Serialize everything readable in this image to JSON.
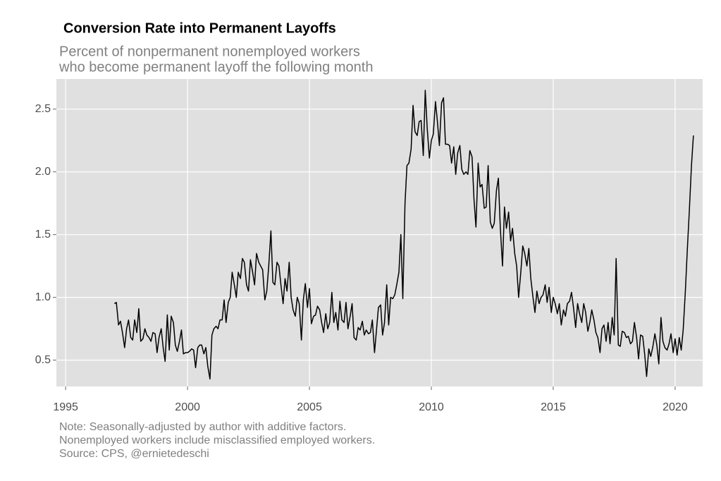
{
  "chart_data": {
    "type": "line",
    "title": "Conversion Rate into Permanent Layoffs",
    "subtitle": [
      "Percent of nonpermanent nonemployed workers",
      "who become permanent layoff the following month"
    ],
    "notes": [
      "Note: Seasonally-adjusted by author with additive factors.",
      "Nonemployed workers include misclassified employed workers.",
      "Source: CPS, @ernietedeschi"
    ],
    "xlim": [
      1994.62,
      2021.13
    ],
    "ylim": [
      0.29,
      2.74
    ],
    "xticks": [
      1995,
      2000,
      2005,
      2010,
      2015,
      2020
    ],
    "yticks": [
      0.5,
      {
        "value": 1,
        "label": "1.0"
      },
      1.5,
      {
        "value": 2,
        "label": "2.0"
      },
      2.5
    ],
    "grid": true,
    "x": [
      1997,
      1997.08,
      1997.17,
      1997.25,
      1997.33,
      1997.42,
      1997.5,
      1997.58,
      1997.67,
      1997.75,
      1997.83,
      1997.92,
      1998,
      1998.08,
      1998.17,
      1998.25,
      1998.33,
      1998.42,
      1998.5,
      1998.58,
      1998.67,
      1998.75,
      1998.83,
      1998.92,
      1999,
      1999.08,
      1999.17,
      1999.25,
      1999.33,
      1999.42,
      1999.5,
      1999.58,
      1999.67,
      1999.75,
      1999.83,
      1999.92,
      2000,
      2000.08,
      2000.17,
      2000.25,
      2000.33,
      2000.42,
      2000.5,
      2000.58,
      2000.67,
      2000.75,
      2000.83,
      2000.92,
      2001,
      2001.08,
      2001.17,
      2001.25,
      2001.33,
      2001.42,
      2001.5,
      2001.58,
      2001.67,
      2001.75,
      2001.83,
      2001.92,
      2002,
      2002.08,
      2002.17,
      2002.25,
      2002.33,
      2002.42,
      2002.5,
      2002.58,
      2002.67,
      2002.75,
      2002.83,
      2002.92,
      2003,
      2003.08,
      2003.17,
      2003.25,
      2003.33,
      2003.42,
      2003.5,
      2003.58,
      2003.67,
      2003.75,
      2003.83,
      2003.92,
      2004,
      2004.08,
      2004.17,
      2004.25,
      2004.33,
      2004.42,
      2004.5,
      2004.58,
      2004.67,
      2004.75,
      2004.83,
      2004.92,
      2005,
      2005.08,
      2005.17,
      2005.25,
      2005.33,
      2005.42,
      2005.5,
      2005.58,
      2005.67,
      2005.75,
      2005.83,
      2005.92,
      2006,
      2006.08,
      2006.17,
      2006.25,
      2006.33,
      2006.42,
      2006.5,
      2006.58,
      2006.67,
      2006.75,
      2006.83,
      2006.92,
      2007,
      2007.08,
      2007.17,
      2007.25,
      2007.33,
      2007.42,
      2007.5,
      2007.58,
      2007.67,
      2007.75,
      2007.83,
      2007.92,
      2008,
      2008.08,
      2008.17,
      2008.25,
      2008.33,
      2008.42,
      2008.5,
      2008.58,
      2008.67,
      2008.75,
      2008.83,
      2008.92,
      2009,
      2009.08,
      2009.17,
      2009.25,
      2009.33,
      2009.42,
      2009.5,
      2009.58,
      2009.67,
      2009.75,
      2009.83,
      2009.92,
      2010,
      2010.08,
      2010.17,
      2010.25,
      2010.33,
      2010.42,
      2010.5,
      2010.58,
      2010.67,
      2010.75,
      2010.83,
      2010.92,
      2011,
      2011.08,
      2011.17,
      2011.25,
      2011.33,
      2011.42,
      2011.5,
      2011.58,
      2011.67,
      2011.75,
      2011.83,
      2011.92,
      2012,
      2012.08,
      2012.17,
      2012.25,
      2012.33,
      2012.42,
      2012.5,
      2012.58,
      2012.67,
      2012.75,
      2012.83,
      2012.92,
      2013,
      2013.08,
      2013.17,
      2013.25,
      2013.33,
      2013.42,
      2013.5,
      2013.58,
      2013.67,
      2013.75,
      2013.83,
      2013.92,
      2014,
      2014.08,
      2014.17,
      2014.25,
      2014.33,
      2014.42,
      2014.5,
      2014.58,
      2014.67,
      2014.75,
      2014.83,
      2014.92,
      2015,
      2015.08,
      2015.17,
      2015.25,
      2015.33,
      2015.42,
      2015.5,
      2015.58,
      2015.67,
      2015.75,
      2015.83,
      2015.92,
      2016,
      2016.08,
      2016.17,
      2016.25,
      2016.33,
      2016.42,
      2016.5,
      2016.58,
      2016.67,
      2016.75,
      2016.83,
      2016.92,
      2017,
      2017.08,
      2017.17,
      2017.25,
      2017.33,
      2017.42,
      2017.5,
      2017.58,
      2017.67,
      2017.75,
      2017.83,
      2017.92,
      2018,
      2018.08,
      2018.17,
      2018.25,
      2018.33,
      2018.42,
      2018.5,
      2018.58,
      2018.67,
      2018.75,
      2018.83,
      2018.92,
      2019,
      2019.08,
      2019.17,
      2019.25,
      2019.33,
      2019.42,
      2019.5,
      2019.58,
      2019.67,
      2019.75,
      2019.83,
      2019.92,
      2020,
      2020.08,
      2020.17,
      2020.25,
      2020.33,
      2020.42,
      2020.5,
      2020.58,
      2020.67,
      2020.75
    ],
    "series": [
      {
        "color": "#000000",
        "values": [
          0.95,
          0.96,
          0.78,
          0.81,
          0.72,
          0.6,
          0.75,
          0.82,
          0.68,
          0.66,
          0.82,
          0.72,
          0.91,
          0.65,
          0.67,
          0.75,
          0.7,
          0.68,
          0.65,
          0.72,
          0.71,
          0.56,
          0.68,
          0.75,
          0.6,
          0.49,
          0.86,
          0.58,
          0.85,
          0.8,
          0.62,
          0.57,
          0.65,
          0.74,
          0.55,
          0.56,
          0.56,
          0.57,
          0.59,
          0.58,
          0.44,
          0.6,
          0.62,
          0.62,
          0.55,
          0.6,
          0.45,
          0.35,
          0.7,
          0.75,
          0.77,
          0.75,
          0.82,
          0.82,
          0.98,
          0.8,
          0.96,
          1.0,
          1.2,
          1.1,
          1.0,
          1.2,
          1.15,
          1.31,
          1.28,
          1.1,
          1.05,
          1.3,
          1.2,
          1.1,
          1.35,
          1.28,
          1.25,
          1.22,
          0.98,
          1.05,
          1.25,
          1.53,
          1.12,
          1.1,
          1.28,
          1.25,
          1.1,
          0.95,
          1.15,
          1.05,
          1.28,
          1.0,
          0.9,
          0.85,
          1.0,
          0.95,
          0.66,
          0.98,
          1.11,
          0.92,
          1.07,
          0.79,
          0.85,
          0.86,
          0.93,
          0.9,
          0.8,
          0.72,
          0.87,
          0.75,
          0.8,
          1.04,
          0.8,
          0.88,
          0.74,
          0.97,
          0.82,
          0.8,
          0.96,
          0.75,
          0.85,
          0.95,
          0.68,
          0.66,
          0.76,
          0.74,
          0.81,
          0.7,
          0.74,
          0.71,
          0.72,
          0.82,
          0.56,
          0.74,
          0.92,
          0.94,
          0.7,
          0.8,
          1.1,
          0.78,
          1.0,
          0.99,
          1.02,
          1.1,
          1.2,
          1.5,
          0.99,
          1.75,
          2.05,
          2.07,
          2.18,
          2.53,
          2.32,
          2.29,
          2.4,
          2.41,
          2.13,
          2.65,
          2.35,
          2.11,
          2.25,
          2.3,
          2.56,
          2.4,
          2.21,
          2.55,
          2.59,
          2.22,
          2.22,
          2.21,
          2.07,
          2.2,
          1.98,
          2.15,
          2.21,
          2.02,
          1.98,
          2.0,
          1.98,
          2.17,
          2.12,
          1.78,
          1.56,
          2.07,
          1.88,
          1.9,
          1.71,
          1.72,
          2.05,
          1.6,
          1.55,
          1.59,
          1.85,
          1.95,
          1.55,
          1.25,
          1.72,
          1.55,
          1.68,
          1.45,
          1.55,
          1.35,
          1.25,
          1.0,
          1.2,
          1.41,
          1.35,
          1.25,
          1.39,
          1.15,
          1.0,
          0.88,
          1.05,
          0.95,
          1.0,
          1.02,
          1.1,
          0.96,
          1.08,
          0.88,
          1.0,
          0.95,
          0.87,
          0.95,
          0.78,
          0.9,
          0.85,
          0.95,
          0.97,
          1.04,
          0.92,
          0.76,
          0.95,
          0.87,
          0.8,
          0.95,
          0.88,
          0.73,
          0.8,
          0.9,
          0.82,
          0.72,
          0.68,
          0.56,
          0.75,
          0.78,
          0.65,
          0.8,
          0.63,
          0.84,
          0.7,
          1.31,
          0.62,
          0.61,
          0.73,
          0.72,
          0.68,
          0.69,
          0.63,
          0.65,
          0.8,
          0.68,
          0.51,
          0.7,
          0.69,
          0.55,
          0.37,
          0.59,
          0.53,
          0.6,
          0.71,
          0.62,
          0.47,
          0.84,
          0.65,
          0.6,
          0.58,
          0.63,
          0.71,
          0.56,
          0.67,
          0.54,
          0.68,
          0.58,
          0.74,
          1.05,
          1.38,
          1.68,
          2.05,
          2.29
        ]
      }
    ]
  }
}
